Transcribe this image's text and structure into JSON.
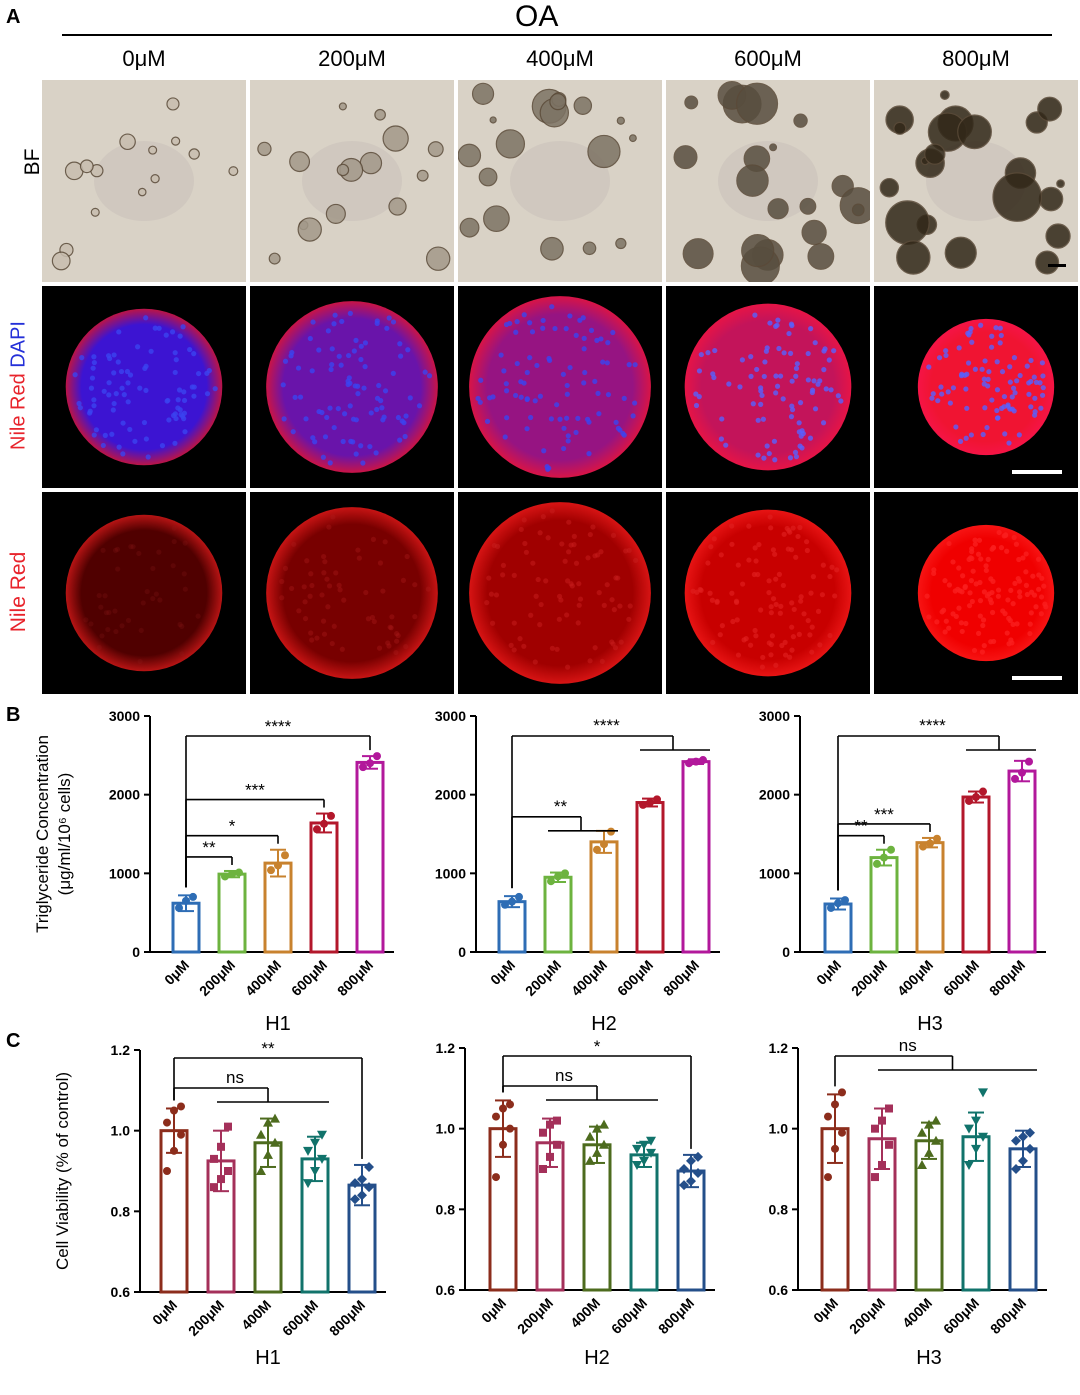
{
  "panel_A": {
    "letter": "A",
    "group_label": "OA",
    "concentrations": [
      "0μM",
      "200μM",
      "400μM",
      "600μM",
      "800μM"
    ],
    "row_labels": {
      "bf": "BF",
      "merge_nile": "Nile Red",
      "merge_dapi": "DAPI",
      "nile": "Nile Red"
    },
    "colors": {
      "nile_red": "#e8232b",
      "dapi": "#2430d8"
    }
  },
  "panel_B": {
    "letter": "B"
  },
  "panel_C": {
    "letter": "C"
  },
  "chart_data": [
    {
      "panel": "B",
      "type": "bar",
      "xlabel": "H1",
      "ylabel": "Triglyceride Concentration (μg/ml/10⁶ cells)",
      "categories": [
        "0μM",
        "200μM",
        "400μM",
        "600μM",
        "800μM"
      ],
      "values": [
        620,
        990,
        1130,
        1640,
        2410
      ],
      "errors": [
        100,
        40,
        170,
        120,
        80
      ],
      "points": [
        [
          560,
          650,
          700
        ],
        [
          960,
          990,
          1010
        ],
        [
          1040,
          1100,
          1230
        ],
        [
          1560,
          1630,
          1730
        ],
        [
          2350,
          2400,
          2490
        ]
      ],
      "ylim": [
        0,
        3000
      ],
      "yticks": [
        0,
        1000,
        2000,
        3000
      ],
      "colors": [
        "#2e6db5",
        "#6db33f",
        "#c8822e",
        "#b3172b",
        "#b2189b"
      ],
      "significance": [
        {
          "label": "**",
          "from": 0,
          "to": 1
        },
        {
          "label": "*",
          "from": 0,
          "to": 2
        },
        {
          "label": "***",
          "from": 0,
          "to": 3
        },
        {
          "label": "****",
          "from": 0,
          "to": 4
        }
      ]
    },
    {
      "panel": "B",
      "type": "bar",
      "xlabel": "H2",
      "categories": [
        "0μM",
        "200μM",
        "400μM",
        "600μM",
        "800μM"
      ],
      "values": [
        640,
        950,
        1400,
        1900,
        2420
      ],
      "errors": [
        70,
        60,
        140,
        50,
        30
      ],
      "points": [
        [
          600,
          640,
          700
        ],
        [
          900,
          960,
          1000
        ],
        [
          1300,
          1370,
          1530
        ],
        [
          1870,
          1900,
          1940
        ],
        [
          2400,
          2420,
          2440
        ]
      ],
      "ylim": [
        0,
        3000
      ],
      "yticks": [
        0,
        1000,
        2000,
        3000
      ],
      "colors": [
        "#2e6db5",
        "#6db33f",
        "#c8822e",
        "#b3172b",
        "#b2189b"
      ],
      "significance": [
        {
          "label": "**",
          "from": 0,
          "to": [
            1,
            2
          ]
        },
        {
          "label": "****",
          "from": 0,
          "to": [
            3,
            4
          ]
        }
      ]
    },
    {
      "panel": "B",
      "type": "bar",
      "xlabel": "H3",
      "categories": [
        "0μM",
        "200μM",
        "400μM",
        "600μM",
        "800μM"
      ],
      "values": [
        610,
        1200,
        1390,
        1970,
        2300
      ],
      "errors": [
        70,
        100,
        60,
        70,
        130
      ],
      "points": [
        [
          560,
          620,
          660
        ],
        [
          1120,
          1200,
          1300
        ],
        [
          1340,
          1380,
          1440
        ],
        [
          1920,
          1970,
          2040
        ],
        [
          2200,
          2280,
          2420
        ]
      ],
      "ylim": [
        0,
        3000
      ],
      "yticks": [
        0,
        1000,
        2000,
        3000
      ],
      "colors": [
        "#2e6db5",
        "#6db33f",
        "#c8822e",
        "#b3172b",
        "#b2189b"
      ],
      "significance": [
        {
          "label": "**",
          "from": 0,
          "to": 1
        },
        {
          "label": "***",
          "from": 0,
          "to": 2
        },
        {
          "label": "****",
          "from": 0,
          "to": [
            3,
            4
          ]
        }
      ]
    },
    {
      "panel": "C",
      "type": "bar",
      "xlabel": "H1",
      "ylabel": "Cell Viability  (% of control)",
      "categories": [
        "0μM",
        "200μM",
        "400M",
        "600μM",
        "800μM"
      ],
      "values": [
        1.0,
        0.925,
        0.97,
        0.93,
        0.865
      ],
      "errors": [
        0.055,
        0.075,
        0.06,
        0.055,
        0.05
      ],
      "points": [
        [
          0.9,
          0.95,
          0.99,
          1.02,
          1.05,
          1.06
        ],
        [
          0.86,
          0.88,
          0.9,
          0.93,
          0.96,
          1.01
        ],
        [
          0.9,
          0.94,
          0.97,
          0.99,
          1.02,
          1.03
        ],
        [
          0.87,
          0.9,
          0.93,
          0.95,
          0.97,
          0.99
        ],
        [
          0.83,
          0.84,
          0.86,
          0.87,
          0.88,
          0.91
        ]
      ],
      "ylim": [
        0.6,
        1.2
      ],
      "yticks": [
        0.6,
        0.8,
        1.0,
        1.2
      ],
      "colors": [
        "#8c2d1c",
        "#a4305a",
        "#4d6b1e",
        "#11736b",
        "#244f8a"
      ],
      "significance": [
        {
          "label": "ns",
          "from": 0,
          "to": [
            1,
            2,
            3
          ]
        },
        {
          "label": "**",
          "from": 0,
          "to": 4
        }
      ]
    },
    {
      "panel": "C",
      "type": "bar",
      "xlabel": "H2",
      "categories": [
        "0μM",
        "200μM",
        "400M",
        "600μM",
        "800μM"
      ],
      "values": [
        1.0,
        0.965,
        0.96,
        0.935,
        0.895
      ],
      "errors": [
        0.07,
        0.06,
        0.045,
        0.03,
        0.04
      ],
      "points": [
        [
          0.88,
          0.96,
          1.0,
          1.03,
          1.05,
          1.06
        ],
        [
          0.9,
          0.93,
          0.96,
          0.99,
          1.01,
          1.02
        ],
        [
          0.92,
          0.94,
          0.96,
          0.98,
          1.0,
          1.01
        ],
        [
          0.91,
          0.92,
          0.94,
          0.95,
          0.96,
          0.97
        ],
        [
          0.86,
          0.87,
          0.89,
          0.9,
          0.92,
          0.93
        ]
      ],
      "ylim": [
        0.6,
        1.2
      ],
      "yticks": [
        0.6,
        0.8,
        1.0,
        1.2
      ],
      "colors": [
        "#8c2d1c",
        "#a4305a",
        "#4d6b1e",
        "#11736b",
        "#244f8a"
      ],
      "significance": [
        {
          "label": "ns",
          "from": 0,
          "to": [
            1,
            2,
            3
          ]
        },
        {
          "label": "*",
          "from": 0,
          "to": 4
        }
      ]
    },
    {
      "panel": "C",
      "type": "bar",
      "xlabel": "H3",
      "categories": [
        "0μM",
        "200μM",
        "400M",
        "600μM",
        "800μM"
      ],
      "values": [
        1.0,
        0.975,
        0.97,
        0.98,
        0.95
      ],
      "errors": [
        0.085,
        0.075,
        0.045,
        0.06,
        0.045
      ],
      "points": [
        [
          0.88,
          0.95,
          0.99,
          1.03,
          1.06,
          1.09
        ],
        [
          0.88,
          0.91,
          0.96,
          1.0,
          1.02,
          1.05
        ],
        [
          0.91,
          0.94,
          0.97,
          0.99,
          1.01,
          1.02
        ],
        [
          0.91,
          0.95,
          0.98,
          1.0,
          1.02,
          1.09
        ],
        [
          0.9,
          0.92,
          0.95,
          0.97,
          0.98,
          0.99
        ]
      ],
      "ylim": [
        0.6,
        1.2
      ],
      "yticks": [
        0.6,
        0.8,
        1.0,
        1.2
      ],
      "colors": [
        "#8c2d1c",
        "#a4305a",
        "#4d6b1e",
        "#11736b",
        "#244f8a"
      ],
      "significance": [
        {
          "label": "ns",
          "from": 0,
          "to": [
            1,
            2,
            3,
            4
          ]
        }
      ]
    }
  ]
}
